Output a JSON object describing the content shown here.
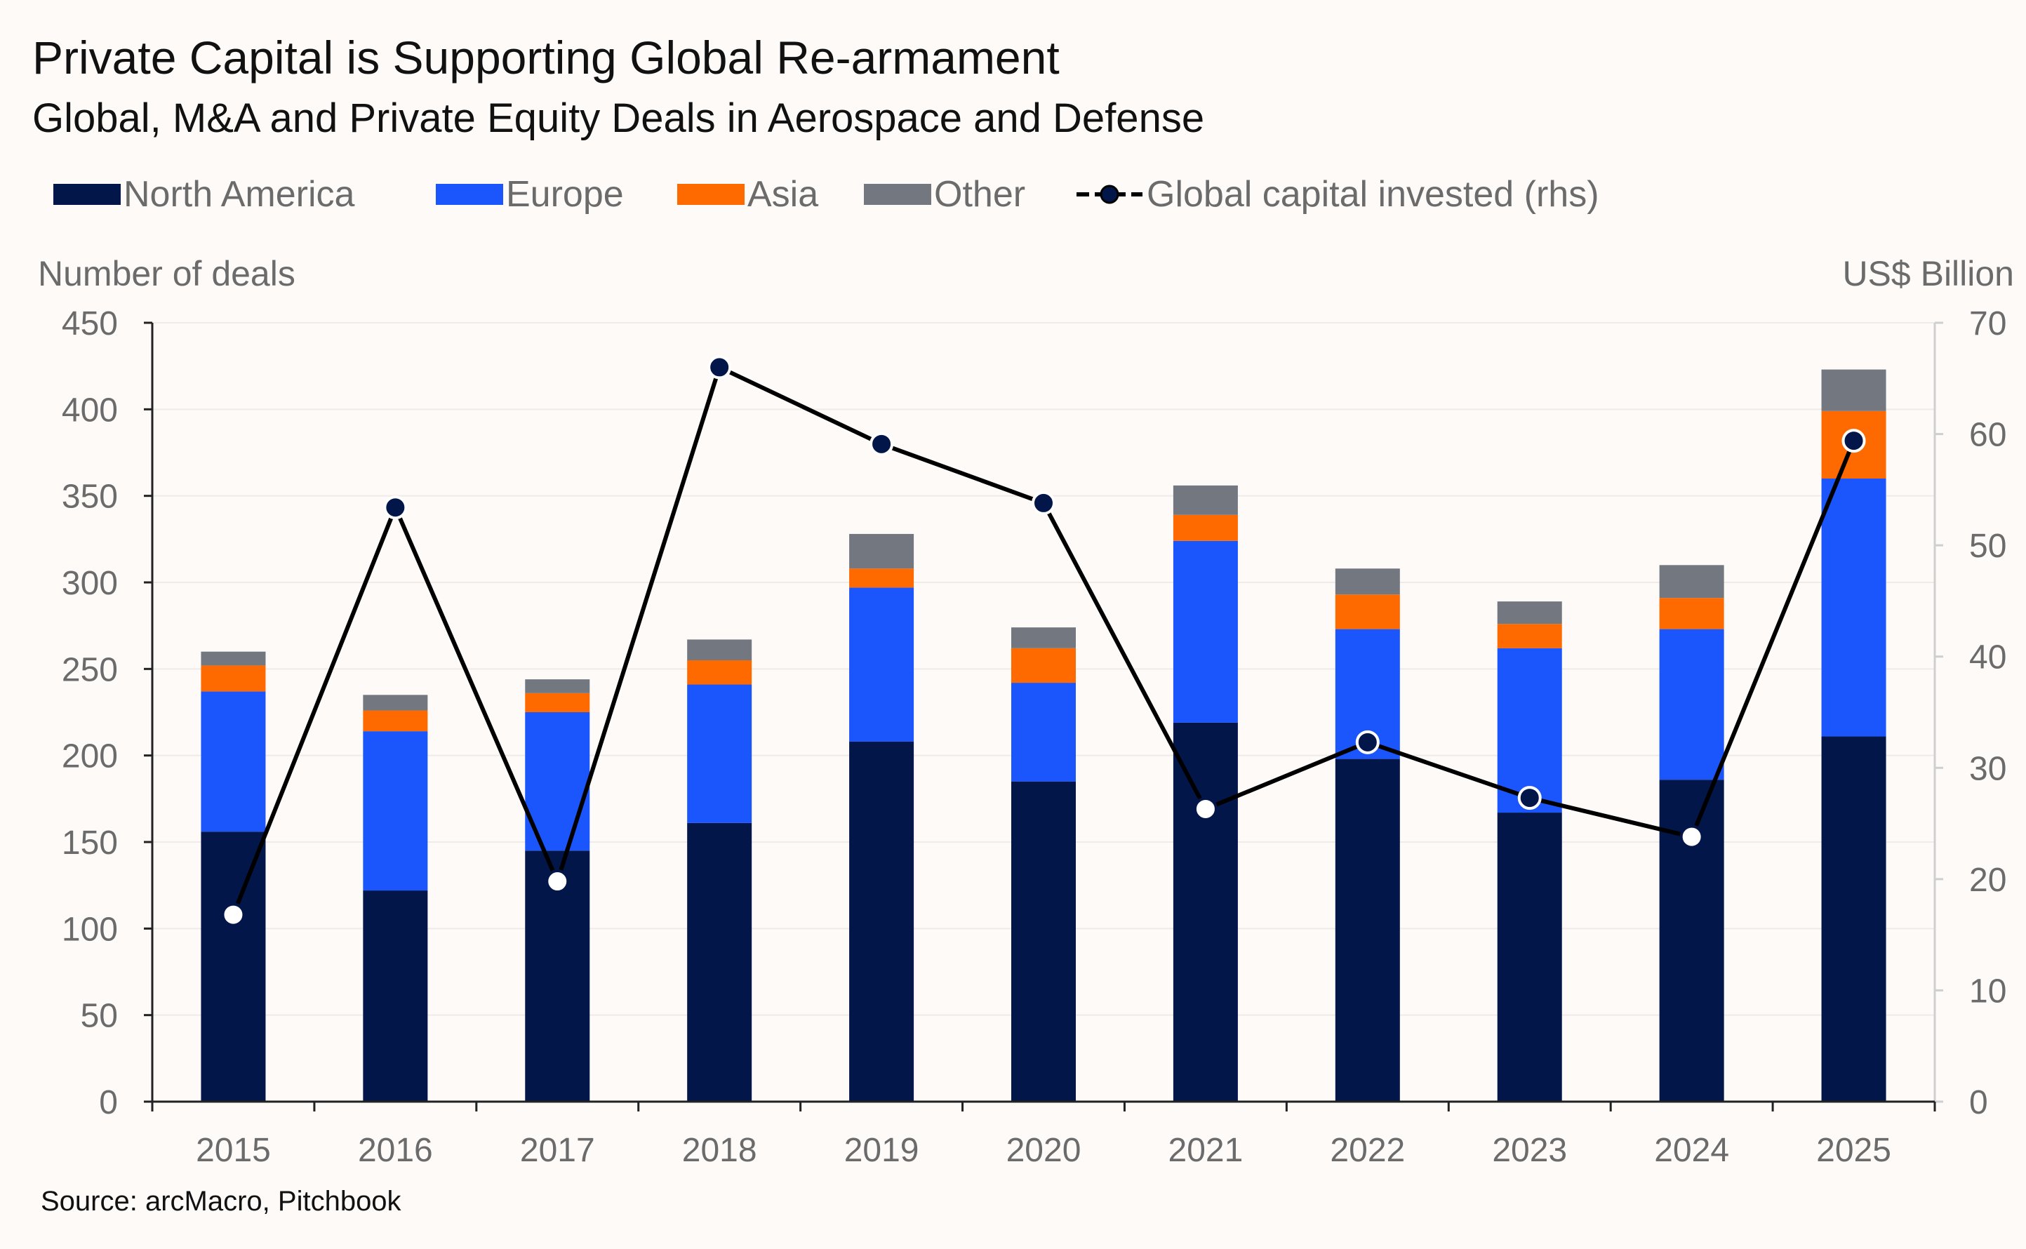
{
  "chart_data": {
    "type": "bar",
    "stacked": true,
    "title": "Private Capital is Supporting Global Re-armament",
    "subtitle": "Global, M&A and Private Equity Deals in Aerospace and Defense",
    "ylabel_left": "Number of deals",
    "ylabel_right": "US$ Billion",
    "ylim_left": [
      0,
      450
    ],
    "ylim_right": [
      0,
      70
    ],
    "yticks_left": [
      "0",
      "50",
      "100",
      "150",
      "200",
      "250",
      "300",
      "350",
      "400",
      "450"
    ],
    "yticks_right": [
      "0",
      "10",
      "20",
      "30",
      "40",
      "50",
      "60",
      "70"
    ],
    "categories": [
      "2015",
      "2016",
      "2017",
      "2018",
      "2019",
      "2020",
      "2021",
      "2022",
      "2023",
      "2024",
      "2025"
    ],
    "series": [
      {
        "name": "North America",
        "color": "#02164a",
        "values": [
          156,
          122,
          145,
          161,
          208,
          185,
          219,
          198,
          167,
          186,
          211
        ]
      },
      {
        "name": "Europe",
        "color": "#1a56fb",
        "values": [
          81,
          92,
          80,
          80,
          89,
          57,
          105,
          75,
          95,
          87,
          149
        ]
      },
      {
        "name": "Asia",
        "color": "#ff6a00",
        "values": [
          15,
          12,
          11,
          14,
          11,
          20,
          15,
          20,
          14,
          18,
          39
        ]
      },
      {
        "name": "Other",
        "color": "#737880",
        "values": [
          8,
          9,
          8,
          12,
          20,
          12,
          17,
          15,
          13,
          19,
          24
        ]
      }
    ],
    "line": {
      "name": "Global capital invested (rhs)",
      "axis": "right",
      "color": "#000000",
      "marker_fill": "#02164a",
      "values": [
        16.8,
        53.4,
        19.8,
        66.0,
        59.1,
        53.8,
        26.3,
        32.3,
        27.3,
        23.8,
        59.4
      ]
    },
    "legend_position": "top-left",
    "grid": true
  },
  "source": "Source: arcMacro, Pitchbook"
}
